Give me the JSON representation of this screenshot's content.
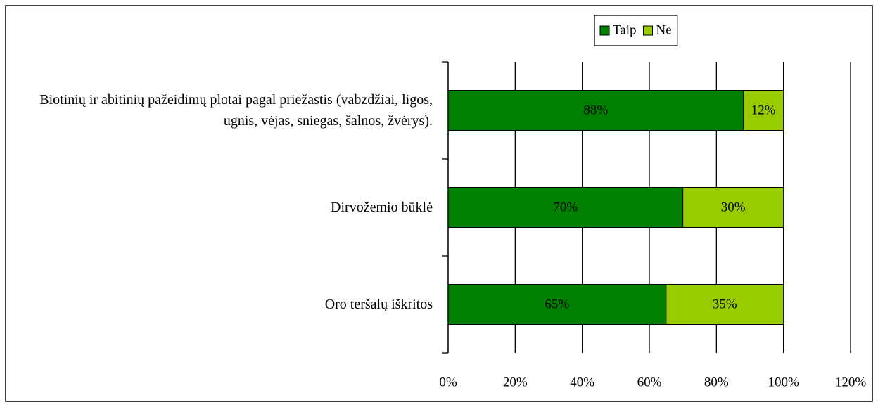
{
  "chart_data": {
    "type": "stacked-barh",
    "categories": [
      "Biotinių ir abitinių pažeidimų plotai pagal priežastis (vabzdžiai, ligos, ugnis, vėjas, sniegas, šalnos, žvėrys).",
      "Dirvožemio būklė",
      "Oro teršalų iškritos"
    ],
    "series": [
      {
        "name": "Taip",
        "color": "#008000",
        "values": [
          88,
          70,
          65
        ],
        "value_labels": [
          "88%",
          "70%",
          "65%"
        ]
      },
      {
        "name": "Ne",
        "color": "#99cc00",
        "values": [
          12,
          30,
          35
        ],
        "value_labels": [
          "12%",
          "30%",
          "35%"
        ]
      }
    ],
    "xlim": [
      0,
      120
    ],
    "xticks": [
      {
        "value": 0,
        "label": "0%"
      },
      {
        "value": 20,
        "label": "20%"
      },
      {
        "value": 40,
        "label": "40%"
      },
      {
        "value": 60,
        "label": "60%"
      },
      {
        "value": 80,
        "label": "80%"
      },
      {
        "value": 100,
        "label": "100%"
      },
      {
        "value": 120,
        "label": "120%"
      }
    ],
    "grid": true,
    "legend": "top"
  }
}
